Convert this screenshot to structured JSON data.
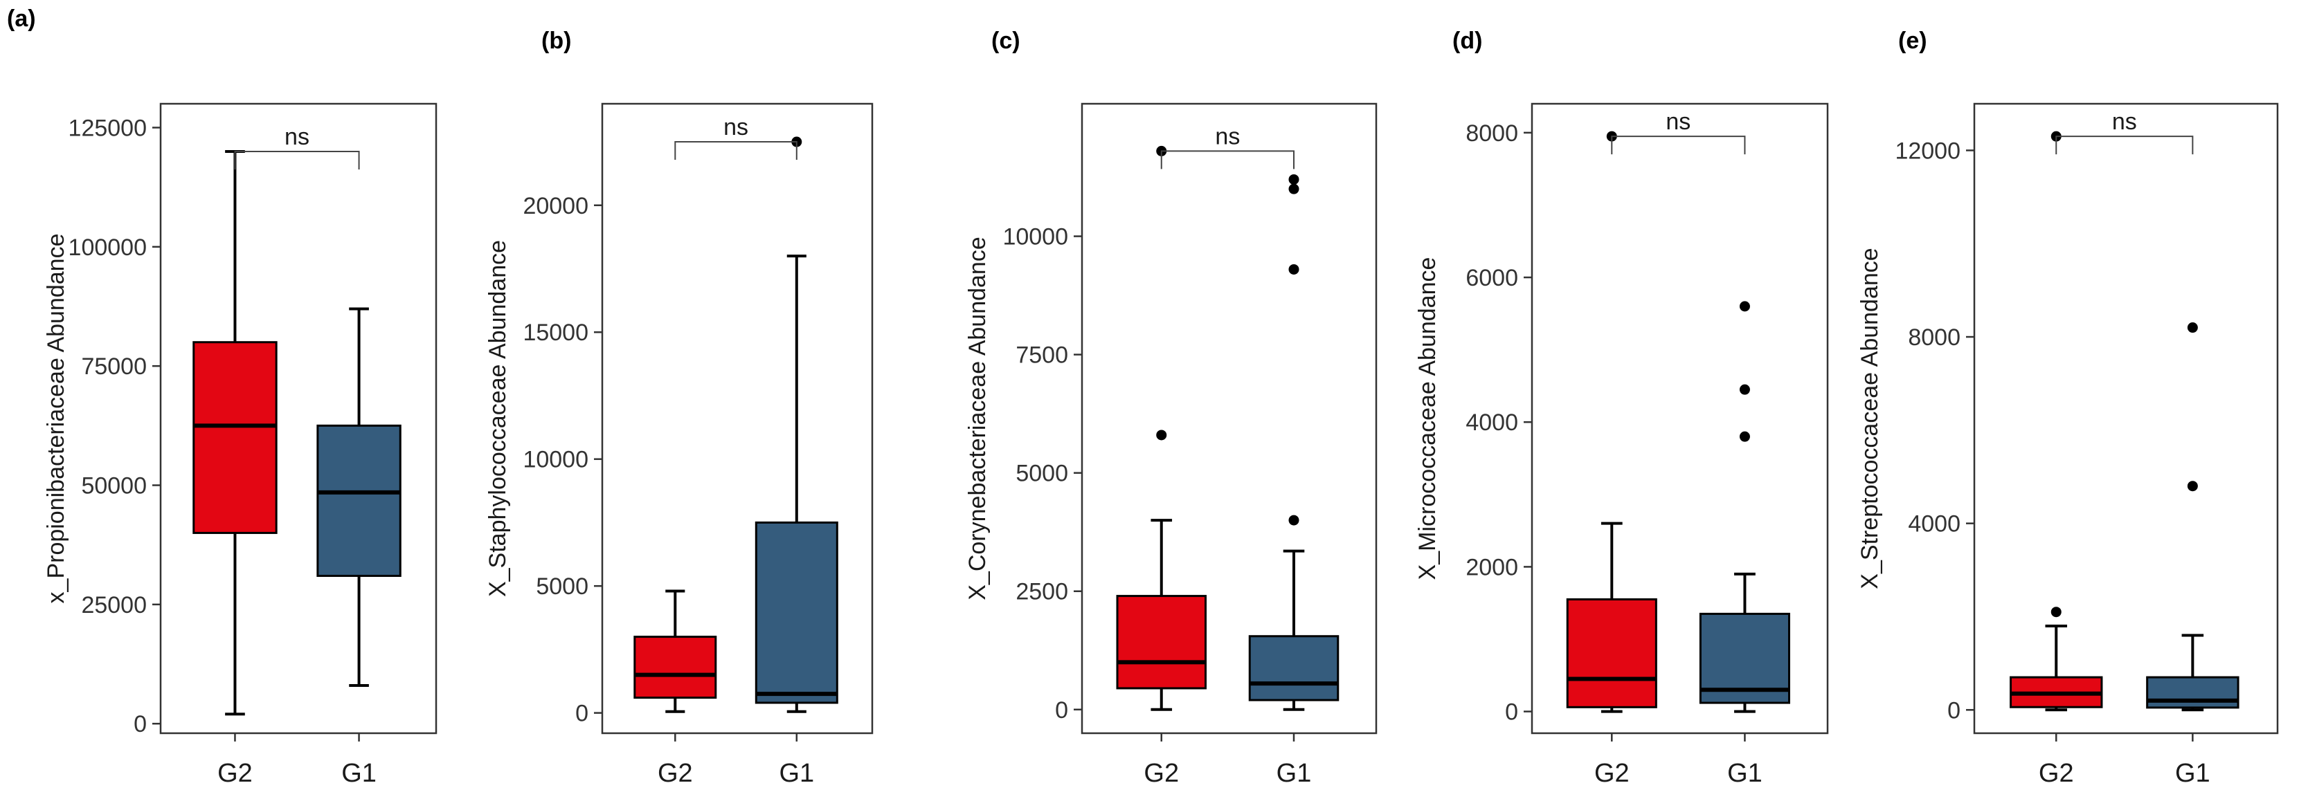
{
  "colors": {
    "G2": "#e30613",
    "G1": "#355c7d",
    "outline": "#000000"
  },
  "chart_data": [
    {
      "type": "box",
      "label": "(a)",
      "ylabel": "x_Propionibacteriaceae Abundance",
      "ylim": [
        -2000,
        130000
      ],
      "yticks": [
        0,
        25000,
        50000,
        75000,
        100000,
        125000
      ],
      "ytick_labels": [
        "0",
        "25000",
        "50000",
        "75000",
        "100000",
        "125000"
      ],
      "categories": [
        "G2",
        "G1"
      ],
      "boxes": [
        {
          "group": "G2",
          "min": 2000,
          "q1": 40000,
          "median": 62500,
          "q3": 80000,
          "max": 120000,
          "outliers": []
        },
        {
          "group": "G1",
          "min": 8000,
          "q1": 31000,
          "median": 48500,
          "q3": 62500,
          "max": 87000,
          "outliers": []
        }
      ],
      "significance": "ns",
      "bracket_y": 120000
    },
    {
      "type": "box",
      "label": "(b)",
      "ylabel": "X_Staphylococcaceae Abundance",
      "ylim": [
        -800,
        24000
      ],
      "yticks": [
        0,
        5000,
        10000,
        15000,
        20000
      ],
      "ytick_labels": [
        "0",
        "5000",
        "10000",
        "15000",
        "20000"
      ],
      "categories": [
        "G2",
        "G1"
      ],
      "boxes": [
        {
          "group": "G2",
          "min": 50,
          "q1": 600,
          "median": 1500,
          "q3": 3000,
          "max": 4800,
          "outliers": []
        },
        {
          "group": "G1",
          "min": 50,
          "q1": 400,
          "median": 750,
          "q3": 7500,
          "max": 18000,
          "outliers": [
            22500
          ]
        }
      ],
      "significance": "ns",
      "bracket_y": 22500
    },
    {
      "type": "box",
      "label": "(c)",
      "ylabel": "X_Corynebacteriaceae Abundance",
      "ylim": [
        -500,
        12800
      ],
      "yticks": [
        0,
        2500,
        5000,
        7500,
        10000
      ],
      "ytick_labels": [
        "0",
        "2500",
        "5000",
        "7500",
        "10000"
      ],
      "categories": [
        "G2",
        "G1"
      ],
      "boxes": [
        {
          "group": "G2",
          "min": 0,
          "q1": 450,
          "median": 1000,
          "q3": 2400,
          "max": 4000,
          "outliers": [
            5800,
            11800
          ]
        },
        {
          "group": "G1",
          "min": 0,
          "q1": 200,
          "median": 550,
          "q3": 1550,
          "max": 3350,
          "outliers": [
            4000,
            9300,
            11000,
            11200
          ]
        }
      ],
      "significance": "ns",
      "bracket_y": 11800
    },
    {
      "type": "box",
      "label": "(d)",
      "ylabel": "X_Micrococcaceae Abundance",
      "ylim": [
        -300,
        8400
      ],
      "yticks": [
        0,
        2000,
        4000,
        6000,
        8000
      ],
      "ytick_labels": [
        "0",
        "2000",
        "4000",
        "6000",
        "8000"
      ],
      "categories": [
        "G2",
        "G1"
      ],
      "boxes": [
        {
          "group": "G2",
          "min": 0,
          "q1": 60,
          "median": 450,
          "q3": 1550,
          "max": 2600,
          "outliers": [
            7950
          ]
        },
        {
          "group": "G1",
          "min": 0,
          "q1": 120,
          "median": 300,
          "q3": 1350,
          "max": 1900,
          "outliers": [
            3800,
            4450,
            5600
          ]
        }
      ],
      "significance": "ns",
      "bracket_y": 7950
    },
    {
      "type": "box",
      "label": "(e)",
      "ylabel": "X_Streptococcaceae Abundance",
      "ylim": [
        -500,
        13000
      ],
      "yticks": [
        0,
        4000,
        8000,
        12000
      ],
      "ytick_labels": [
        "0",
        "4000",
        "8000",
        "12000"
      ],
      "categories": [
        "G2",
        "G1"
      ],
      "boxes": [
        {
          "group": "G2",
          "min": 0,
          "q1": 60,
          "median": 350,
          "q3": 700,
          "max": 1800,
          "outliers": [
            2100,
            12300
          ]
        },
        {
          "group": "G1",
          "min": 0,
          "q1": 50,
          "median": 200,
          "q3": 700,
          "max": 1600,
          "outliers": [
            4800,
            8200
          ]
        }
      ],
      "significance": "ns",
      "bracket_y": 12300
    }
  ]
}
